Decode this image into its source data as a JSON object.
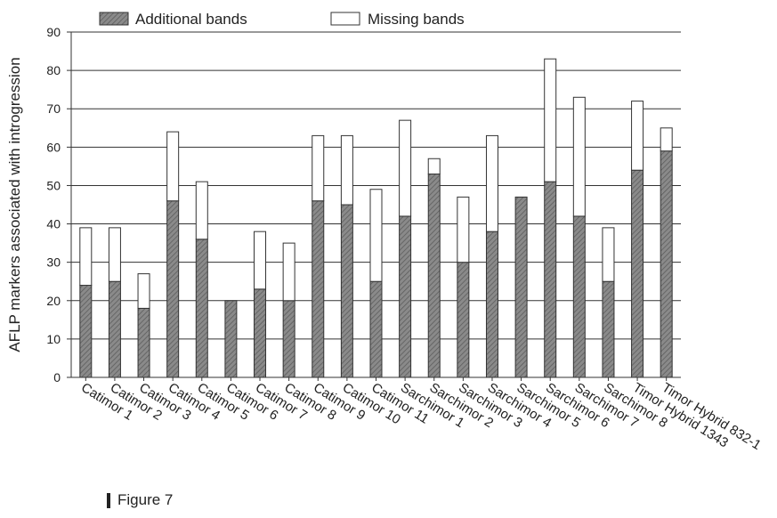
{
  "figure": {
    "caption": "Figure 7"
  },
  "chart_data": {
    "type": "bar",
    "stacked": true,
    "ylabel": "AFLP markers associated with introgression",
    "xlabel": "",
    "ylim": [
      0,
      90
    ],
    "yticks": [
      0,
      10,
      20,
      30,
      40,
      50,
      60,
      70,
      80,
      90
    ],
    "grid": true,
    "legend_position": "top",
    "categories": [
      "Catimor 1",
      "Catimor 2",
      "Catimor 3",
      "Catimor 4",
      "Catimor 5",
      "Catimor 6",
      "Catimor 7",
      "Catimor 8",
      "Catimor 9",
      "Catimor 10",
      "Catimor 11",
      "Sarchimor 1",
      "Sarchimor 2",
      "Sarchimor 3",
      "Sarchimor 4",
      "Sarchimor 5",
      "Sarchimor 6",
      "Sarchimor 7",
      "Sarchimor 8",
      "Timor Hybrid 1343",
      "Timor Hybrid 832-1"
    ],
    "series": [
      {
        "name": "Additional bands",
        "color": "#8a8a8a",
        "values": [
          24,
          25,
          18,
          46,
          36,
          20,
          23,
          20,
          46,
          45,
          25,
          42,
          53,
          30,
          38,
          47,
          51,
          42,
          25,
          54,
          59
        ]
      },
      {
        "name": "Missing bands",
        "color": "#ffffff",
        "values": [
          15,
          14,
          9,
          18,
          15,
          0,
          15,
          15,
          17,
          18,
          24,
          25,
          4,
          17,
          25,
          0,
          32,
          31,
          14,
          18,
          6
        ]
      }
    ]
  }
}
